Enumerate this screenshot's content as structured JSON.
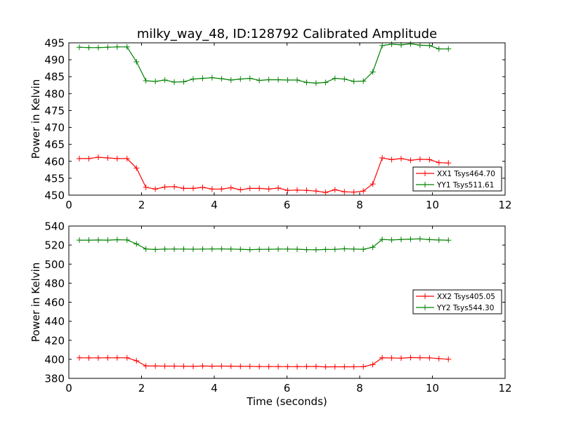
{
  "chart_data": [
    {
      "type": "line",
      "title": "milky_way_48, ID:128792 Calibrated Amplitude",
      "xlabel": "",
      "ylabel": "Power in Kelvin",
      "xlim": [
        0,
        12
      ],
      "ylim": [
        450,
        495
      ],
      "xticks": [
        "0",
        "2",
        "4",
        "6",
        "8",
        "10",
        "12"
      ],
      "yticks": [
        "450",
        "455",
        "460",
        "465",
        "470",
        "475",
        "480",
        "485",
        "490",
        "495"
      ],
      "grid": false,
      "legend_position": "lower right",
      "marker": "+",
      "x": [
        0.29,
        0.55,
        0.81,
        1.07,
        1.33,
        1.6,
        1.86,
        2.12,
        2.38,
        2.64,
        2.9,
        3.16,
        3.42,
        3.68,
        3.94,
        4.2,
        4.46,
        4.72,
        4.98,
        5.24,
        5.5,
        5.76,
        6.02,
        6.28,
        6.54,
        6.8,
        7.06,
        7.32,
        7.58,
        7.84,
        8.1,
        8.36,
        8.62,
        8.88,
        9.14,
        9.4,
        9.66,
        9.92,
        10.18,
        10.44
      ],
      "series": [
        {
          "name": "XX1 Tsys464.70",
          "color": "#ff0000",
          "values": [
            460.8,
            460.8,
            461.2,
            461.0,
            460.8,
            460.8,
            458.0,
            452.3,
            451.8,
            452.4,
            452.5,
            452.0,
            452.0,
            452.3,
            451.8,
            451.8,
            452.2,
            451.6,
            452.0,
            452.0,
            451.8,
            452.1,
            451.4,
            451.5,
            451.4,
            451.2,
            450.8,
            451.6,
            451.0,
            450.9,
            451.2,
            453.3,
            461.0,
            460.5,
            460.8,
            460.3,
            460.6,
            460.5,
            459.6,
            459.5
          ]
        },
        {
          "name": "YY1 Tsys511.61",
          "color": "#008000",
          "values": [
            493.7,
            493.6,
            493.6,
            493.7,
            493.8,
            493.8,
            489.4,
            483.8,
            483.6,
            484.0,
            483.4,
            483.5,
            484.3,
            484.5,
            484.7,
            484.4,
            484.0,
            484.3,
            484.5,
            483.9,
            484.1,
            484.1,
            484.0,
            484.0,
            483.3,
            483.1,
            483.3,
            484.5,
            484.3,
            483.6,
            483.7,
            486.4,
            494.2,
            494.6,
            494.4,
            494.7,
            494.3,
            494.2,
            493.2,
            493.2
          ]
        }
      ]
    },
    {
      "type": "line",
      "title": "",
      "xlabel": "Time (seconds)",
      "ylabel": "Power in Kelvin",
      "xlim": [
        0,
        12
      ],
      "ylim": [
        380,
        540
      ],
      "xticks": [
        "0",
        "2",
        "4",
        "6",
        "8",
        "10",
        "12"
      ],
      "yticks": [
        "380",
        "400",
        "420",
        "440",
        "460",
        "480",
        "500",
        "520",
        "540"
      ],
      "grid": false,
      "legend_position": "center right",
      "marker": "+",
      "x": [
        0.29,
        0.55,
        0.81,
        1.07,
        1.33,
        1.6,
        1.86,
        2.12,
        2.38,
        2.64,
        2.9,
        3.16,
        3.42,
        3.68,
        3.94,
        4.2,
        4.46,
        4.72,
        4.98,
        5.24,
        5.5,
        5.76,
        6.02,
        6.28,
        6.54,
        6.8,
        7.06,
        7.32,
        7.58,
        7.84,
        8.1,
        8.36,
        8.62,
        8.88,
        9.14,
        9.4,
        9.66,
        9.92,
        10.18,
        10.44
      ],
      "series": [
        {
          "name": "XX2 Tsys405.05",
          "color": "#ff0000",
          "values": [
            401.6,
            401.5,
            401.5,
            401.6,
            401.6,
            401.6,
            398.5,
            393.0,
            393.0,
            392.9,
            392.9,
            392.8,
            392.6,
            393.0,
            392.8,
            392.9,
            392.8,
            392.6,
            392.6,
            392.4,
            392.4,
            392.4,
            392.3,
            392.3,
            392.4,
            392.5,
            392.1,
            392.2,
            392.2,
            392.2,
            392.3,
            394.5,
            401.7,
            401.4,
            401.2,
            401.8,
            401.7,
            401.5,
            400.8,
            400.1
          ]
        },
        {
          "name": "YY2 Tsys544.30",
          "color": "#008000",
          "values": [
            525.2,
            525.2,
            525.3,
            525.2,
            525.6,
            525.4,
            521.2,
            515.9,
            515.4,
            515.8,
            515.8,
            515.8,
            515.7,
            515.8,
            515.9,
            516.0,
            515.8,
            515.6,
            515.2,
            515.5,
            515.6,
            515.8,
            515.8,
            515.7,
            515.2,
            515.1,
            515.4,
            515.5,
            516.1,
            515.8,
            515.6,
            517.7,
            526.0,
            525.4,
            525.9,
            526.3,
            526.5,
            525.7,
            525.3,
            525.1
          ]
        }
      ]
    }
  ]
}
